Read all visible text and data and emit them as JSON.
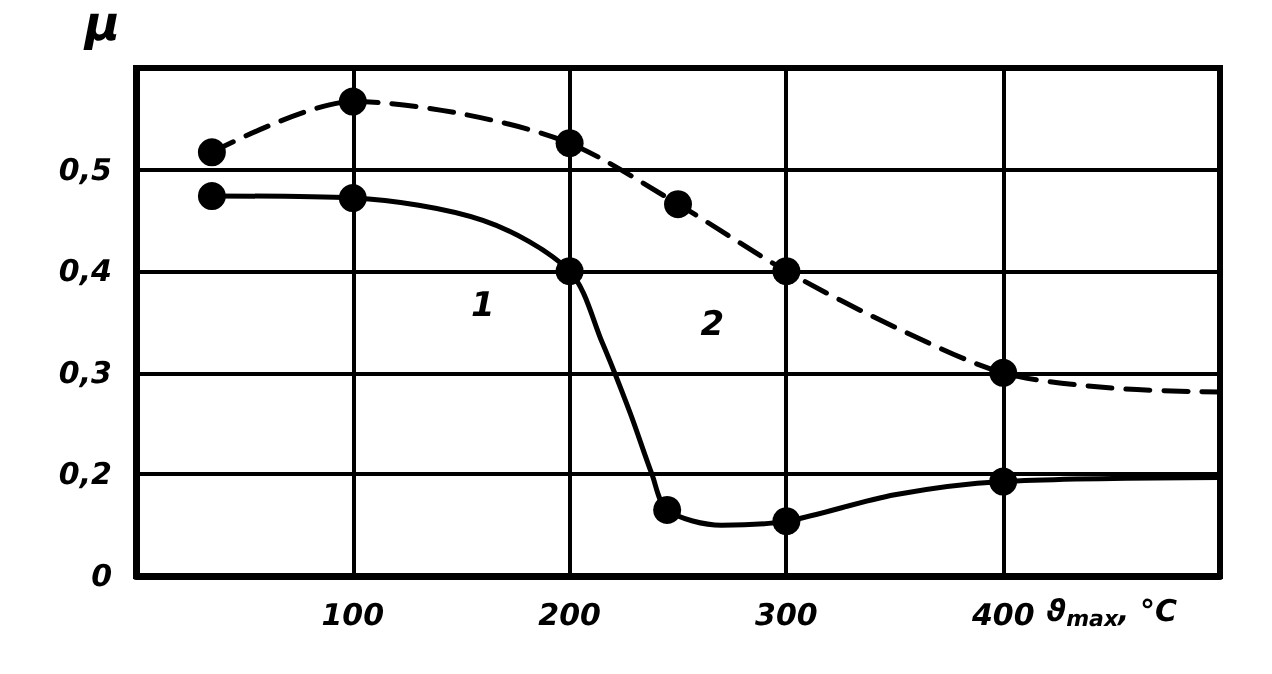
{
  "chart_data": {
    "type": "line",
    "xlabel": "ϑ$_{max}$, °C",
    "ylabel": "μ",
    "xlim": [
      0,
      500
    ],
    "xticks": [
      100,
      200,
      300,
      400
    ],
    "ylim": [
      0.1,
      0.6
    ],
    "yticks": [
      {
        "value": 0.1,
        "label": "0"
      },
      {
        "value": 0.2,
        "label": "0,2"
      },
      {
        "value": 0.3,
        "label": "0,3"
      },
      {
        "value": 0.4,
        "label": "0,4"
      },
      {
        "value": 0.5,
        "label": "0,5"
      }
    ],
    "grid": true,
    "series": [
      {
        "name": "1",
        "color": "#000000",
        "line_style": "solid",
        "marker": "none",
        "x": [
          35,
          100,
          160,
          200,
          215,
          228,
          238,
          245,
          270,
          300,
          350,
          400,
          500
        ],
        "values": [
          0.474,
          0.472,
          0.45,
          0.4,
          0.33,
          0.26,
          0.2,
          0.165,
          0.15,
          0.154,
          0.18,
          0.193,
          0.197
        ]
      },
      {
        "name": "2",
        "color": "#000000",
        "line_style": "dashed",
        "marker": "none",
        "x": [
          35,
          100,
          150,
          200,
          250,
          300,
          350,
          400,
          450,
          500
        ],
        "values": [
          0.517,
          0.567,
          0.555,
          0.526,
          0.466,
          0.4,
          0.345,
          0.3,
          0.285,
          0.281
        ]
      },
      {
        "type": "scatter",
        "color": "#000000",
        "marker": "circle",
        "x": [
          35,
          100,
          200,
          245,
          300,
          400
        ],
        "values": [
          0.474,
          0.472,
          0.4,
          0.165,
          0.154,
          0.193
        ]
      },
      {
        "type": "scatter",
        "color": "#000000",
        "marker": "circle",
        "x": [
          35,
          100,
          200,
          250,
          300,
          400
        ],
        "values": [
          0.517,
          0.567,
          0.526,
          0.466,
          0.4,
          0.3
        ]
      }
    ]
  }
}
